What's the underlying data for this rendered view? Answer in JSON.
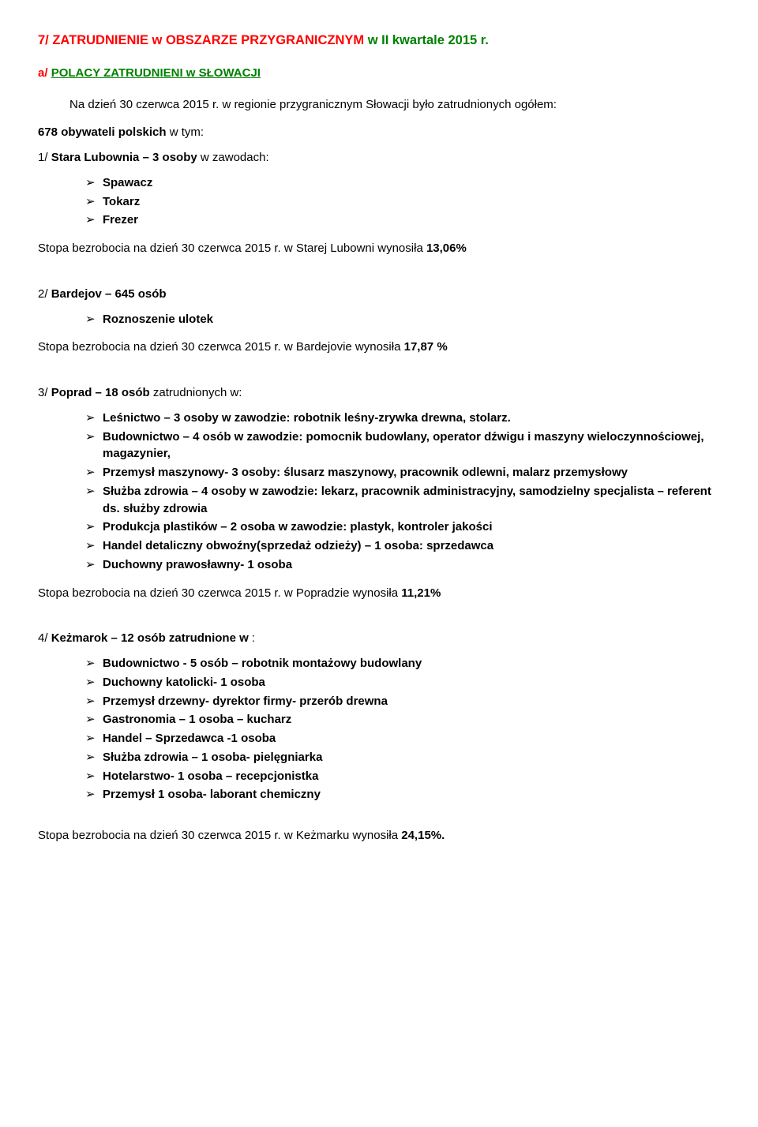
{
  "heading": {
    "part1": "7/ ZATRUDNIENIE  w OBSZARZE  PRZYGRANICZNYM",
    "part2": "  w II kwartale 2015 r."
  },
  "sub_a": {
    "prefix": "a/   ",
    "link": "POLACY ZATRUDNIENI  w  SŁOWACJI"
  },
  "intro1": "Na dzień 30 czerwca 2015 r.  w regionie przygranicznym Słowacji było zatrudnionych ogółem:",
  "intro2_bold": "678 obywateli polskich",
  "intro2_rest": " w tym:",
  "s1": {
    "title_bold": "Stara Lubownia –      3  osoby",
    "title_rest": " w zawodach:",
    "prefix": "1/ ",
    "items": [
      "Spawacz",
      "Tokarz",
      "Frezer"
    ],
    "rate_pre": "Stopa bezrobocia  na dzień 30 czerwca 2015 r.  w Starej  Lubowni wynosiła ",
    "rate_val": "13,06%"
  },
  "s2": {
    "title_bold": "Bardejov  – 645 osób",
    "prefix": "2/ ",
    "items": [
      "Roznoszenie ulotek"
    ],
    "rate_pre": "Stopa bezrobocia  na dzień 30 czerwca  2015 r.  w Bardejovie  wynosiła ",
    "rate_val": "17,87 %"
  },
  "s3": {
    "title_bold": "Poprad – 18 osób",
    "title_rest": " zatrudnionych w:",
    "prefix": "3/ ",
    "items": [
      "Leśnictwo – 3 osoby w zawodzie: robotnik leśny-zrywka drewna, stolarz.",
      "Budownictwo – 4 osób w zawodzie: pomocnik budowlany, operator dźwigu i maszyny wieloczynnościowej, magazynier,",
      "Przemysł maszynowy- 3 osoby: ślusarz maszynowy,  pracownik odlewni, malarz przemysłowy",
      "Służba zdrowia – 4 osoby w zawodzie: lekarz, pracownik administracyjny, samodzielny specjalista – referent ds. służby zdrowia",
      "Produkcja plastików – 2 osoba w zawodzie: plastyk, kontroler jakości",
      "Handel detaliczny obwoźny(sprzedaż odzieży) – 1 osoba: sprzedawca",
      "Duchowny prawosławny- 1 osoba"
    ],
    "rate_pre": "Stopa bezrobocia  na dzień 30 czerwca  2015 r.  w Popradzie   wynosiła ",
    "rate_val": "11,21%"
  },
  "s4": {
    "title_bold": "Keżmarok – 12 osób  zatrudnione w",
    "title_rest": " :",
    "prefix": "4/ ",
    "items": [
      "Budownictwo - 5 osób –   robotnik montażowy budowlany",
      "Duchowny katolicki- 1 osoba",
      "Przemysł drzewny- dyrektor firmy- przerób drewna",
      "Gastronomia – 1 osoba – kucharz",
      "Handel – Sprzedawca -1 osoba",
      "Służba zdrowia – 1 osoba- pielęgniarka",
      "Hotelarstwo- 1 osoba – recepcjonistka",
      "Przemysł 1 osoba- laborant chemiczny"
    ],
    "rate_pre": "Stopa bezrobocia  na dzień 30 czerwca  2015 r.  w  Keżmarku  wynosiła  ",
    "rate_val": "24,15%."
  }
}
